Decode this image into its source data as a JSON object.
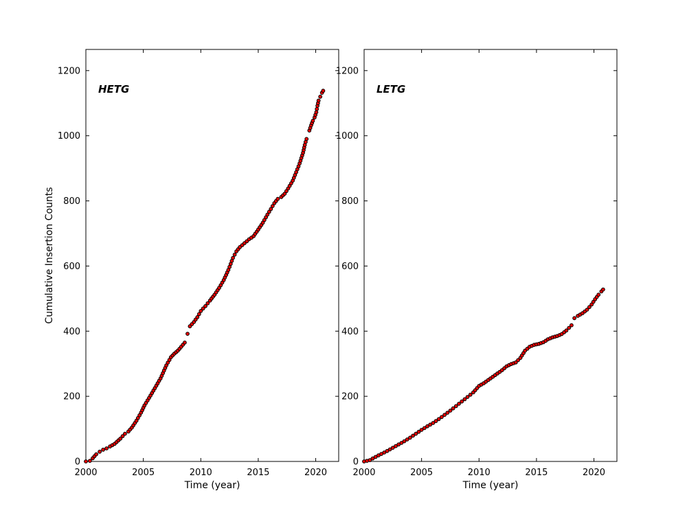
{
  "figure": {
    "background": "#ffffff",
    "axis_color": "#000000",
    "marker_fill": "#ee0000",
    "marker_edge": "#000000",
    "marker_radius": 2.4
  },
  "chart_data": [
    {
      "type": "scatter",
      "panel": "hetg",
      "label": "HETG",
      "xlabel": "Time (year)",
      "ylabel": "Cumulative Insertion Counts",
      "xlim": [
        2000,
        2022
      ],
      "ylim": [
        0,
        1265
      ],
      "xticks": [
        2000,
        2005,
        2010,
        2015,
        2020
      ],
      "yticks": [
        0,
        200,
        400,
        600,
        800,
        1000,
        1200
      ],
      "grid": false,
      "legend": "none",
      "segments": [
        [
          [
            2000.0,
            0
          ],
          [
            2000.35,
            2
          ],
          [
            2000.6,
            10
          ],
          [
            2000.9,
            22
          ],
          [
            2001.2,
            30
          ],
          [
            2001.5,
            36
          ],
          [
            2001.8,
            40
          ],
          [
            2002.1,
            46
          ],
          [
            2002.5,
            54
          ],
          [
            2003.0,
            70
          ],
          [
            2003.4,
            85
          ],
          [
            2003.7,
            92
          ],
          [
            2004.0,
            104
          ],
          [
            2004.4,
            125
          ],
          [
            2004.8,
            150
          ],
          [
            2005.1,
            172
          ],
          [
            2005.5,
            195
          ],
          [
            2006.0,
            225
          ],
          [
            2006.5,
            255
          ],
          [
            2007.0,
            295
          ],
          [
            2007.4,
            320
          ],
          [
            2007.7,
            331
          ],
          [
            2008.0,
            340
          ],
          [
            2008.3,
            352
          ],
          [
            2008.6,
            365
          ]
        ],
        [
          [
            2008.85,
            392
          ]
        ],
        [
          [
            2009.05,
            415
          ],
          [
            2009.4,
            428
          ],
          [
            2009.7,
            443
          ],
          [
            2010.0,
            462
          ],
          [
            2010.4,
            477
          ],
          [
            2010.8,
            494
          ],
          [
            2011.2,
            512
          ],
          [
            2011.6,
            533
          ],
          [
            2012.0,
            557
          ],
          [
            2012.4,
            588
          ],
          [
            2012.8,
            625
          ],
          [
            2013.1,
            645
          ],
          [
            2013.4,
            658
          ],
          [
            2013.8,
            670
          ],
          [
            2014.2,
            682
          ],
          [
            2014.6,
            692
          ],
          [
            2015.0,
            712
          ],
          [
            2015.4,
            733
          ],
          [
            2015.8,
            758
          ],
          [
            2016.1,
            775
          ],
          [
            2016.4,
            793
          ],
          [
            2016.7,
            806
          ],
          [
            2017.0,
            812
          ],
          [
            2017.3,
            822
          ],
          [
            2017.6,
            838
          ],
          [
            2018.0,
            862
          ],
          [
            2018.3,
            888
          ],
          [
            2018.6,
            915
          ],
          [
            2018.9,
            948
          ],
          [
            2019.05,
            972
          ],
          [
            2019.2,
            990
          ]
        ],
        [
          [
            2019.45,
            1016
          ],
          [
            2019.6,
            1032
          ],
          [
            2019.75,
            1046
          ],
          [
            2019.9,
            1056
          ],
          [
            2020.05,
            1072
          ],
          [
            2020.15,
            1092
          ],
          [
            2020.25,
            1108
          ],
          [
            2020.4,
            1120
          ],
          [
            2020.55,
            1132
          ],
          [
            2020.65,
            1138
          ]
        ]
      ]
    },
    {
      "type": "scatter",
      "panel": "letg",
      "label": "LETG",
      "xlabel": "Time (year)",
      "ylabel": "",
      "xlim": [
        2000,
        2022
      ],
      "ylim": [
        0,
        1265
      ],
      "xticks": [
        2000,
        2005,
        2010,
        2015,
        2020
      ],
      "yticks": [
        0,
        200,
        400,
        600,
        800,
        1000,
        1200
      ],
      "grid": false,
      "legend": "none",
      "segments": [
        [
          [
            2000.0,
            0
          ],
          [
            2000.5,
            4
          ],
          [
            2001.0,
            14
          ],
          [
            2001.5,
            23
          ],
          [
            2002.0,
            32
          ],
          [
            2002.5,
            42
          ],
          [
            2003.0,
            52
          ],
          [
            2003.5,
            62
          ],
          [
            2004.0,
            73
          ],
          [
            2004.5,
            85
          ],
          [
            2005.0,
            97
          ],
          [
            2005.5,
            108
          ],
          [
            2006.0,
            118
          ],
          [
            2006.5,
            130
          ],
          [
            2007.0,
            143
          ],
          [
            2007.5,
            156
          ],
          [
            2008.0,
            170
          ],
          [
            2008.5,
            184
          ],
          [
            2009.0,
            198
          ],
          [
            2009.5,
            212
          ],
          [
            2010.0,
            232
          ],
          [
            2010.4,
            240
          ],
          [
            2010.8,
            250
          ],
          [
            2011.2,
            260
          ],
          [
            2011.6,
            270
          ],
          [
            2012.0,
            280
          ],
          [
            2012.4,
            292
          ],
          [
            2012.8,
            299
          ],
          [
            2013.2,
            304
          ],
          [
            2013.6,
            318
          ],
          [
            2014.0,
            340
          ],
          [
            2014.4,
            352
          ],
          [
            2014.8,
            358
          ],
          [
            2015.2,
            361
          ],
          [
            2015.6,
            366
          ],
          [
            2016.0,
            375
          ],
          [
            2016.4,
            381
          ],
          [
            2016.8,
            385
          ],
          [
            2017.2,
            391
          ],
          [
            2017.6,
            402
          ],
          [
            2018.05,
            418
          ]
        ],
        [
          [
            2018.3,
            440
          ],
          [
            2018.6,
            447
          ],
          [
            2019.0,
            455
          ],
          [
            2019.4,
            466
          ],
          [
            2019.8,
            482
          ],
          [
            2020.1,
            498
          ],
          [
            2020.4,
            512
          ],
          [
            2020.65,
            522
          ],
          [
            2020.8,
            528
          ]
        ]
      ]
    }
  ]
}
